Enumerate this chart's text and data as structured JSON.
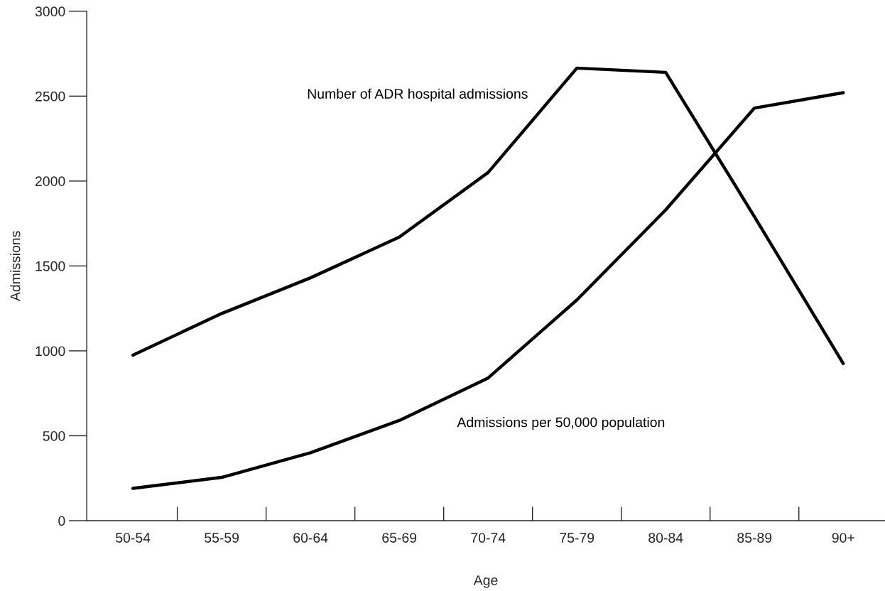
{
  "chart_data": {
    "type": "line",
    "xlabel": "Age",
    "ylabel": "Admissions",
    "categories": [
      "50-54",
      "55-59",
      "60-64",
      "65-69",
      "70-74",
      "75-79",
      "80-84",
      "85-89",
      "90+"
    ],
    "series": [
      {
        "name": "Number of ADR hospital admissions",
        "color": "#000000",
        "values": [
          975,
          1220,
          1430,
          1670,
          2050,
          2665,
          2640,
          1790,
          925
        ]
      },
      {
        "name": "Admissions per 50,000 population",
        "color": "#000000",
        "values": [
          190,
          255,
          400,
          590,
          840,
          1300,
          1830,
          2430,
          2520
        ]
      }
    ],
    "ylim": [
      0,
      3000
    ],
    "yticks": [
      0,
      500,
      1000,
      1500,
      2000,
      2500,
      3000
    ],
    "grid": false,
    "legend": false,
    "marker": "none",
    "line_style": "solid"
  }
}
